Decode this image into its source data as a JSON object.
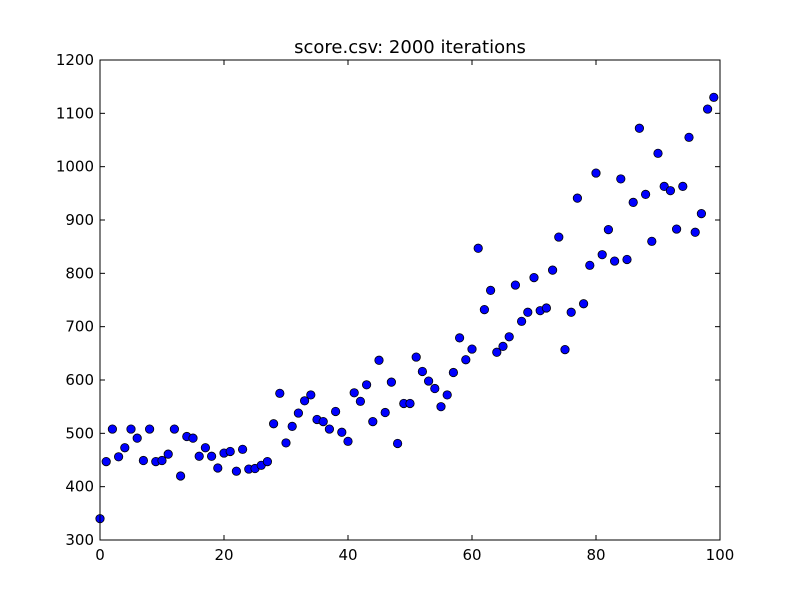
{
  "chart_data": {
    "type": "scatter",
    "title": "score.csv: 2000 iterations",
    "xlabel": "",
    "ylabel": "",
    "xlim": [
      0,
      100
    ],
    "ylim": [
      300,
      1200
    ],
    "xticks": [
      0,
      20,
      40,
      60,
      80,
      100
    ],
    "yticks": [
      300,
      400,
      500,
      600,
      700,
      800,
      900,
      1000,
      1100,
      1200
    ],
    "grid": false,
    "marker_color": "#0000ff",
    "marker_edge_color": "#000000",
    "series": [
      {
        "x": [
          0,
          1,
          2,
          3,
          4,
          5,
          6,
          7,
          8,
          9,
          10,
          11,
          12,
          13,
          14,
          15,
          16,
          17,
          18,
          19,
          20,
          21,
          22,
          23,
          24,
          25,
          26,
          27,
          28,
          29,
          30,
          31,
          32,
          33,
          34,
          35,
          36,
          37,
          38,
          39,
          40,
          41,
          42,
          43,
          44,
          45,
          46,
          47,
          48,
          49,
          50,
          51,
          52,
          53,
          54,
          55,
          56,
          57,
          58,
          59,
          60,
          61,
          62,
          63,
          64,
          65,
          66,
          67,
          68,
          69,
          70,
          71,
          72,
          73,
          74,
          75,
          76,
          77,
          78,
          79,
          80,
          81,
          82,
          83,
          84,
          85,
          86,
          87,
          88,
          89,
          90,
          91,
          92,
          93,
          94,
          95,
          96,
          97,
          98,
          99
        ],
        "y": [
          340,
          447,
          508,
          456,
          473,
          508,
          491,
          449,
          508,
          447,
          449,
          461,
          508,
          420,
          494,
          491,
          457,
          473,
          457,
          435,
          463,
          466,
          429,
          470,
          433,
          434,
          440,
          447,
          518,
          575,
          482,
          513,
          538,
          561,
          572,
          526,
          522,
          508,
          541,
          502,
          485,
          576,
          560,
          591,
          522,
          637,
          539,
          596,
          481,
          556,
          556,
          643,
          616,
          598,
          584,
          550,
          572,
          614,
          679,
          638,
          658,
          847,
          732,
          768,
          652,
          663,
          681,
          778,
          710,
          727,
          792,
          730,
          735,
          806,
          868,
          657,
          727,
          941,
          743,
          815,
          988,
          835,
          882,
          823,
          977,
          826,
          933,
          1072,
          948,
          860,
          1025,
          963,
          955,
          883,
          963,
          1055,
          877,
          912,
          1108,
          1130
        ]
      }
    ]
  }
}
